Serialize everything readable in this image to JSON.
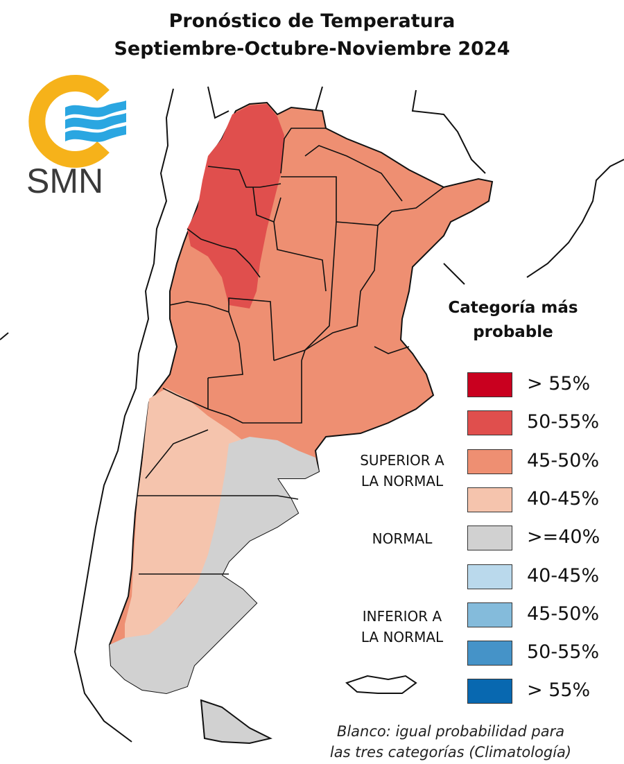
{
  "title": {
    "line1": "Pronóstico de Temperatura",
    "line2": "Septiembre-Octubre-Noviembre 2024"
  },
  "logo": {
    "text": "SMN",
    "colors": {
      "ring": "#f6b21a",
      "waves": "#2aa6e1",
      "text": "#3a3a3a"
    }
  },
  "legend": {
    "title_line1": "Categoría más",
    "title_line2": "probable",
    "categories": [
      {
        "line1": "SUPERIOR A",
        "line2": "LA NORMAL"
      },
      {
        "line1": "NORMAL",
        "line2": ""
      },
      {
        "line1": "INFERIOR A",
        "line2": "LA NORMAL"
      }
    ],
    "items": [
      {
        "label": "> 55%",
        "color": "#c9001f",
        "category": "superior"
      },
      {
        "label": "50-55%",
        "color": "#e04f4d",
        "category": "superior"
      },
      {
        "label": "45-50%",
        "color": "#ee8f72",
        "category": "superior"
      },
      {
        "label": "40-45%",
        "color": "#f5c4ad",
        "category": "superior"
      },
      {
        "label": ">=40%",
        "color": "#d1d1d1",
        "category": "normal"
      },
      {
        "label": "40-45%",
        "color": "#bad9ec",
        "category": "inferior"
      },
      {
        "label": "45-50%",
        "color": "#84bbdb",
        "category": "inferior"
      },
      {
        "label": "50-55%",
        "color": "#4593c8",
        "category": "inferior"
      },
      {
        "label": "> 55%",
        "color": "#0868b0",
        "category": "inferior"
      }
    ]
  },
  "note": {
    "line1": "Blanco: igual probabilidad para",
    "line2": "las tres categorías (Climatología)"
  },
  "map": {
    "colors": {
      "ocean": "#ffffff",
      "border_line": "#111111",
      "superior_50_55": "#e04f4d",
      "superior_45_50": "#ee8f72",
      "superior_40_45": "#f5c4ad",
      "normal": "#d1d1d1",
      "white_equal": "#f2f2f2"
    }
  }
}
